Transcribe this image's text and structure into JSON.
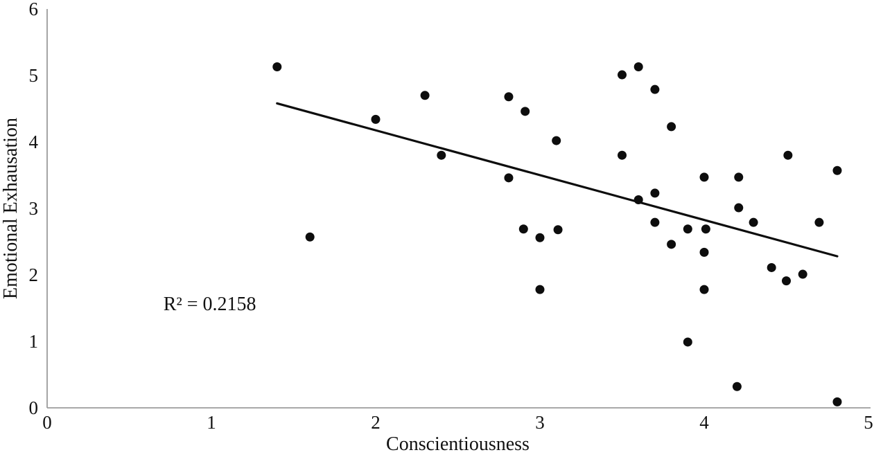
{
  "chart_data": {
    "type": "scatter",
    "title": "",
    "xlabel": "Conscientiousness",
    "ylabel": "Emotional Exhausation",
    "xlim": [
      0,
      5
    ],
    "ylim": [
      0,
      6
    ],
    "xticks": [
      0,
      1,
      2,
      3,
      4,
      5
    ],
    "yticks": [
      0,
      1,
      2,
      3,
      4,
      5,
      6
    ],
    "grid": false,
    "legend": false,
    "annotation": {
      "text": "R² = 0.2158",
      "x": 0.99,
      "y": 1.56
    },
    "trendline": {
      "x1": 1.4,
      "y1": 4.58,
      "x2": 4.81,
      "y2": 2.28
    },
    "points": [
      [
        1.4,
        5.13
      ],
      [
        1.6,
        2.57
      ],
      [
        2.0,
        4.34
      ],
      [
        2.3,
        4.7
      ],
      [
        2.4,
        3.8
      ],
      [
        2.81,
        4.68
      ],
      [
        2.91,
        4.46
      ],
      [
        2.81,
        3.46
      ],
      [
        3.1,
        4.02
      ],
      [
        2.9,
        2.69
      ],
      [
        3.0,
        2.56
      ],
      [
        3.11,
        2.68
      ],
      [
        3.0,
        1.78
      ],
      [
        3.5,
        5.01
      ],
      [
        3.6,
        5.13
      ],
      [
        3.7,
        4.79
      ],
      [
        3.8,
        4.23
      ],
      [
        3.5,
        3.8
      ],
      [
        3.6,
        3.13
      ],
      [
        3.7,
        3.23
      ],
      [
        3.7,
        2.79
      ],
      [
        3.8,
        2.46
      ],
      [
        3.9,
        2.69
      ],
      [
        4.01,
        2.69
      ],
      [
        4.0,
        3.47
      ],
      [
        4.0,
        2.34
      ],
      [
        4.0,
        1.78
      ],
      [
        3.9,
        0.99
      ],
      [
        4.21,
        3.47
      ],
      [
        4.21,
        3.01
      ],
      [
        4.2,
        0.32
      ],
      [
        4.3,
        2.79
      ],
      [
        4.41,
        2.11
      ],
      [
        4.51,
        3.8
      ],
      [
        4.5,
        1.91
      ],
      [
        4.6,
        2.01
      ],
      [
        4.7,
        2.79
      ],
      [
        4.81,
        3.57
      ],
      [
        4.81,
        0.09
      ]
    ],
    "colors": {
      "point": "#0d0d0d",
      "trend": "#0d0d0d",
      "axis": "#9b9b9b",
      "text": "#111111",
      "background": "#ffffff"
    }
  }
}
